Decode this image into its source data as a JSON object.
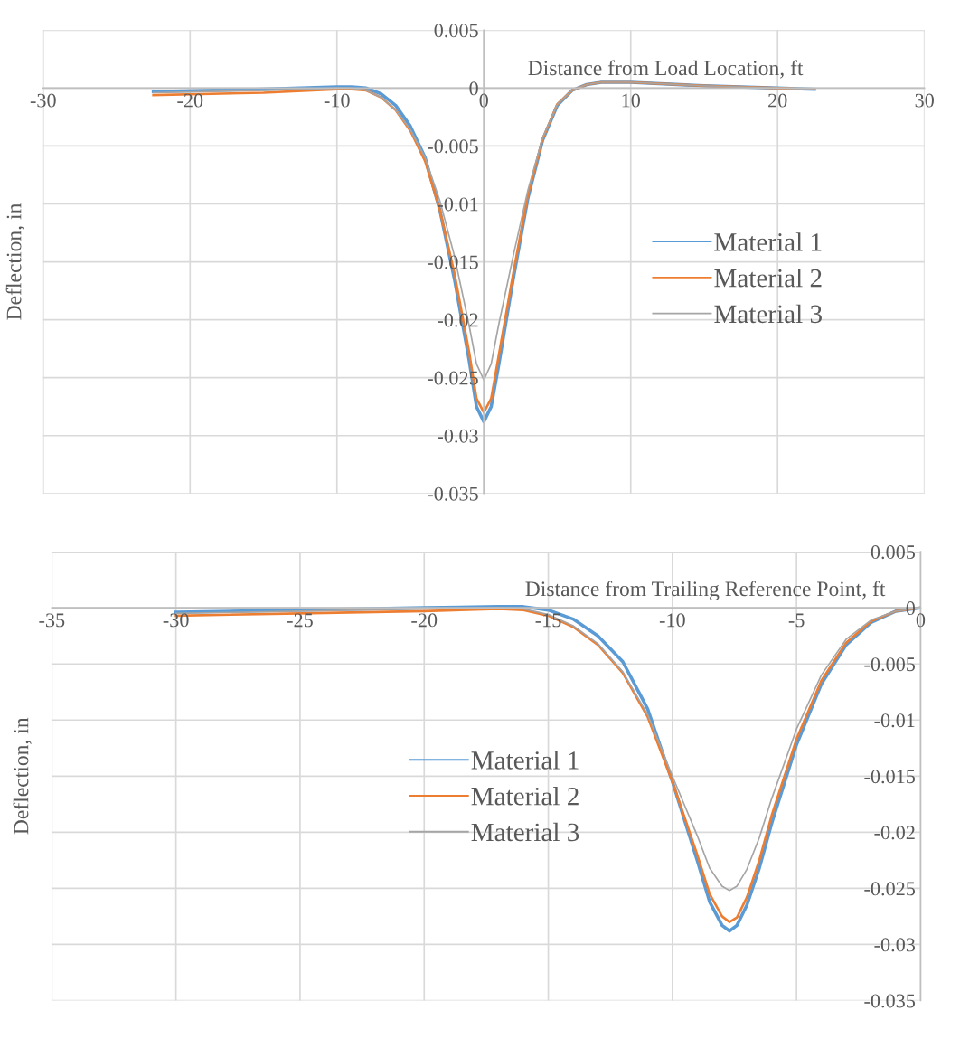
{
  "chart_data": [
    {
      "type": "line",
      "xlabel": "Distance from Load Location, ft",
      "ylabel": "Deflection, in",
      "xlim": [
        -30,
        30
      ],
      "xticks": [
        -30,
        -20,
        -10,
        0,
        10,
        20,
        30
      ],
      "ylim": [
        -0.035,
        0.005
      ],
      "yticks": [
        -0.035,
        -0.03,
        -0.025,
        -0.02,
        -0.015,
        -0.01,
        -0.005,
        0,
        0.005
      ],
      "grid": true,
      "legend": "right",
      "marker": "none",
      "line_style": "solid",
      "x": [
        -22.5,
        -15,
        -10,
        -9,
        -8,
        -7,
        -6,
        -5,
        -4,
        -3,
        -2,
        -1,
        -0.5,
        0,
        0.5,
        1,
        2,
        3,
        4,
        5,
        6,
        7,
        8,
        10,
        15,
        20,
        22.5
      ],
      "series": [
        {
          "name": "Material 1",
          "color": "#5b9bd5",
          "values": [
            -0.0003,
            -0.0001,
            0.0001,
            0.0001,
            0,
            -0.0005,
            -0.0015,
            -0.0033,
            -0.006,
            -0.0105,
            -0.0165,
            -0.0235,
            -0.0275,
            -0.0288,
            -0.0275,
            -0.024,
            -0.0165,
            -0.0095,
            -0.0045,
            -0.0015,
            -0.0002,
            0.0003,
            0.0005,
            0.0005,
            0.0002,
            0,
            -0.0001
          ]
        },
        {
          "name": "Material 2",
          "color": "#ed7d31",
          "values": [
            -0.0006,
            -0.0004,
            -0.0001,
            -0.0001,
            -0.0002,
            -0.0008,
            -0.0019,
            -0.0037,
            -0.0063,
            -0.0105,
            -0.016,
            -0.0228,
            -0.0268,
            -0.028,
            -0.0268,
            -0.0232,
            -0.016,
            -0.0092,
            -0.0044,
            -0.0014,
            -0.0002,
            0.0003,
            0.0005,
            0.0005,
            0.0002,
            0,
            -0.0001
          ]
        },
        {
          "name": "Material 3",
          "color": "#a5a5a5",
          "values": [
            -0.0004,
            -0.0002,
            0,
            0,
            -0.0002,
            -0.0008,
            -0.0019,
            -0.0036,
            -0.006,
            -0.0097,
            -0.0145,
            -0.0205,
            -0.0238,
            -0.0252,
            -0.0238,
            -0.0205,
            -0.0145,
            -0.0088,
            -0.0043,
            -0.0014,
            -0.0002,
            0.0003,
            0.0005,
            0.0005,
            0.0002,
            0,
            -0.0001
          ]
        }
      ]
    },
    {
      "type": "line",
      "xlabel": "Distance from Trailing Reference Point, ft",
      "ylabel": "Deflection, in",
      "xlim": [
        -35,
        0
      ],
      "xticks": [
        -35,
        -30,
        -25,
        -20,
        -15,
        -10,
        -5,
        0
      ],
      "ylim": [
        -0.035,
        0.005
      ],
      "yticks": [
        -0.035,
        -0.03,
        -0.025,
        -0.02,
        -0.015,
        -0.01,
        -0.005,
        0,
        0.005
      ],
      "grid": true,
      "legend": "center",
      "marker": "none",
      "line_style": "solid",
      "x": [
        -30,
        -25,
        -20,
        -17,
        -16,
        -15,
        -14,
        -13,
        -12,
        -11,
        -10,
        -9,
        -8.5,
        -8,
        -7.7,
        -7.4,
        -7,
        -6.5,
        -6,
        -5,
        -4,
        -3,
        -2,
        -1,
        0
      ],
      "series": [
        {
          "name": "Material 1",
          "color": "#5b9bd5",
          "values": [
            -0.0004,
            -0.0002,
            0,
            0.0001,
            0.0001,
            -0.0002,
            -0.001,
            -0.0025,
            -0.0048,
            -0.009,
            -0.0155,
            -0.0225,
            -0.0262,
            -0.0283,
            -0.0288,
            -0.0283,
            -0.0265,
            -0.0232,
            -0.0192,
            -0.0122,
            -0.0068,
            -0.0033,
            -0.0013,
            -0.0003,
            0
          ]
        },
        {
          "name": "Material 2",
          "color": "#ed7d31",
          "values": [
            -0.0007,
            -0.0005,
            -0.0003,
            -0.0001,
            -0.0002,
            -0.0007,
            -0.0017,
            -0.0033,
            -0.0058,
            -0.0097,
            -0.0155,
            -0.022,
            -0.0255,
            -0.0275,
            -0.028,
            -0.0276,
            -0.0258,
            -0.0225,
            -0.0185,
            -0.0117,
            -0.0065,
            -0.0031,
            -0.0012,
            -0.0003,
            0
          ]
        },
        {
          "name": "Material 3",
          "color": "#a5a5a5",
          "values": [
            -0.0005,
            -0.0003,
            -0.0001,
            0,
            -0.0001,
            -0.0006,
            -0.0016,
            -0.0032,
            -0.0057,
            -0.0095,
            -0.015,
            -0.0203,
            -0.0232,
            -0.0248,
            -0.0252,
            -0.0248,
            -0.0233,
            -0.0205,
            -0.017,
            -0.0108,
            -0.006,
            -0.0028,
            -0.0011,
            -0.0003,
            0
          ]
        }
      ]
    }
  ]
}
